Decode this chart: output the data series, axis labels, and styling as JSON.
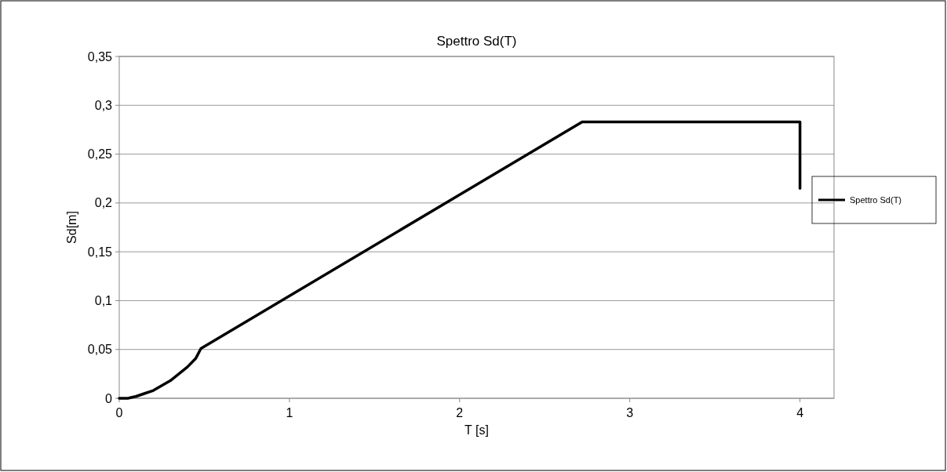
{
  "chart_data": {
    "type": "line",
    "title": "Spettro Sd(T)",
    "xlabel": "T [s]",
    "ylabel": "Sd[m]",
    "series": [
      {
        "name": "Spettro Sd(T)",
        "color": "#000000",
        "x": [
          0,
          0.05,
          0.1,
          0.15,
          0.2,
          0.25,
          0.3,
          0.35,
          0.4,
          0.45,
          0.48,
          2.72,
          4.0,
          4.0
        ],
        "values": [
          0,
          0,
          0.002,
          0.005,
          0.008,
          0.013,
          0.018,
          0.025,
          0.032,
          0.041,
          0.051,
          0.283,
          0.283,
          0.215
        ]
      }
    ],
    "xlim": [
      0,
      4.2
    ],
    "xticks": [
      0,
      1,
      2,
      3,
      4
    ],
    "ylim": [
      0,
      0.35
    ],
    "yticks": [
      {
        "value": 0,
        "label": "0"
      },
      {
        "value": 0.05,
        "label": "0,05"
      },
      {
        "value": 0.1,
        "label": "0,1"
      },
      {
        "value": 0.15,
        "label": "0,15"
      },
      {
        "value": 0.2,
        "label": "0,2"
      },
      {
        "value": 0.25,
        "label": "0,25"
      },
      {
        "value": 0.3,
        "label": "0,3"
      },
      {
        "value": 0.35,
        "label": "0,35"
      }
    ],
    "grid": "y",
    "legend": "right",
    "marker": "none",
    "line_style": "solid"
  }
}
